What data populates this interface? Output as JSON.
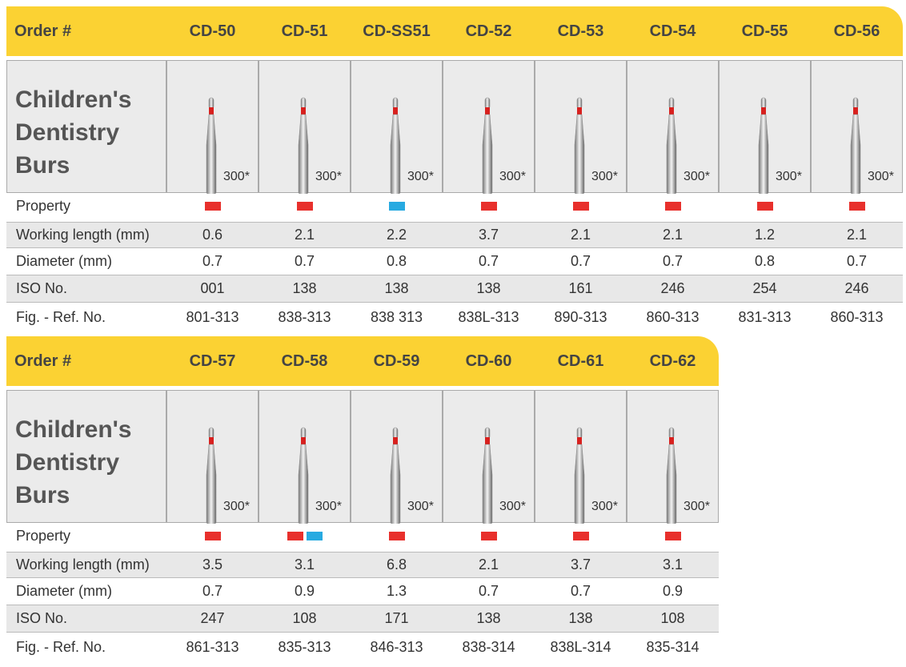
{
  "tables": [
    {
      "header": {
        "label": "Order #",
        "codes": [
          "CD-50",
          "CD-51",
          "CD-SS51",
          "CD-52",
          "CD-53",
          "CD-54",
          "CD-55",
          "CD-56"
        ]
      },
      "image_row": {
        "title": [
          "Children's",
          "Dentistry",
          "Burs"
        ],
        "notes": [
          "300*",
          "300*",
          "300*",
          "300*",
          "300*",
          "300*",
          "300*",
          "300*"
        ]
      },
      "property": {
        "label": "Property",
        "swatches": [
          [
            "#e8302c"
          ],
          [
            "#e8302c"
          ],
          [
            "#27aae1"
          ],
          [
            "#e8302c"
          ],
          [
            "#e8302c"
          ],
          [
            "#e8302c"
          ],
          [
            "#e8302c"
          ],
          [
            "#e8302c"
          ]
        ]
      },
      "rows": [
        {
          "label": "Working length (mm)",
          "values": [
            "0.6",
            "2.1",
            "2.2",
            "3.7",
            "2.1",
            "2.1",
            "1.2",
            "2.1"
          ]
        },
        {
          "label": "Diameter (mm)",
          "values": [
            "0.7",
            "0.7",
            "0.8",
            "0.7",
            "0.7",
            "0.7",
            "0.8",
            "0.7"
          ]
        },
        {
          "label": "ISO No.",
          "values": [
            "001",
            "138",
            "138",
            "138",
            "161",
            "246",
            "254",
            "246"
          ]
        },
        {
          "label": "Fig. - Ref. No.",
          "values": [
            "801-313",
            "838-313",
            "838 313",
            "838L-313",
            "890-313",
            "860-313",
            "831-313",
            "860-313"
          ]
        }
      ]
    },
    {
      "header": {
        "label": "Order #",
        "codes": [
          "CD-57",
          "CD-58",
          "CD-59",
          "CD-60",
          "CD-61",
          "CD-62"
        ]
      },
      "image_row": {
        "title": [
          "Children's",
          "Dentistry",
          "Burs"
        ],
        "notes": [
          "300*",
          "300*",
          "300*",
          "300*",
          "300*",
          "300*"
        ]
      },
      "property": {
        "label": "Property",
        "swatches": [
          [
            "#e8302c"
          ],
          [
            "#e8302c",
            "#27aae1"
          ],
          [
            "#e8302c"
          ],
          [
            "#e8302c"
          ],
          [
            "#e8302c"
          ],
          [
            "#e8302c"
          ]
        ]
      },
      "rows": [
        {
          "label": "Working length (mm)",
          "values": [
            "3.5",
            "3.1",
            "6.8",
            "2.1",
            "3.7",
            "3.1"
          ]
        },
        {
          "label": "Diameter (mm)",
          "values": [
            "0.7",
            "0.9",
            "1.3",
            "0.7",
            "0.7",
            "0.9"
          ]
        },
        {
          "label": "ISO No.",
          "values": [
            "247",
            "108",
            "171",
            "138",
            "138",
            "108"
          ]
        },
        {
          "label": "Fig. - Ref. No.",
          "values": [
            "861-313",
            "835-313",
            "846-313",
            "838-314",
            "838L-314",
            "835-314"
          ]
        }
      ]
    }
  ]
}
